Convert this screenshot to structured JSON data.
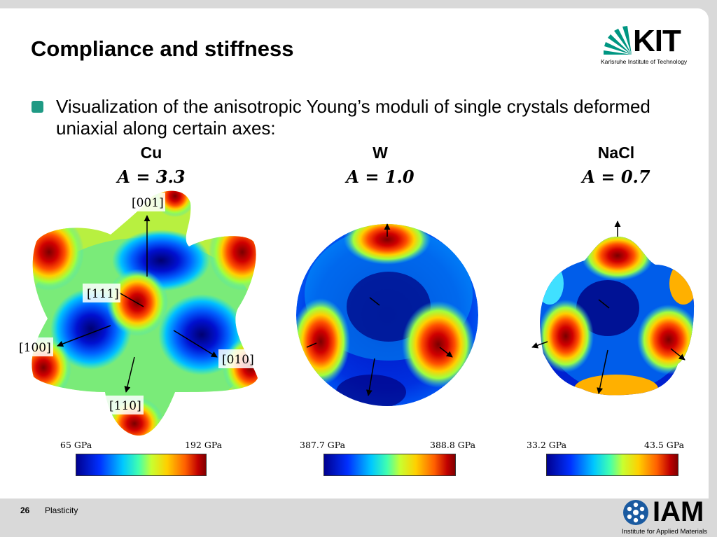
{
  "slide": {
    "title": "Compliance and stiffness",
    "bullet": "Visualization of the anisotropic Young’s moduli of single crystals deformed uniaxial along certain axes:",
    "accent_color": "#1f9a84"
  },
  "logos": {
    "kit_word": "KIT",
    "kit_sub": "Karlsruhe Institute of Technology",
    "iam_word": "IAM",
    "iam_sub": "Institute for Applied Materials"
  },
  "crystals": [
    {
      "name": "Cu",
      "anisotropy": "A = 3.3",
      "scale_min": "65 GPa",
      "scale_max": "192 GPa",
      "direction_labels": [
        "[001]",
        "[111]",
        "[100]",
        "[010]",
        "[110]"
      ]
    },
    {
      "name": "W",
      "anisotropy": "A = 1.0",
      "scale_min": "387.7 GPa",
      "scale_max": "388.8 GPa"
    },
    {
      "name": "NaCl",
      "anisotropy": "A = 0.7",
      "scale_min": "33.2 GPa",
      "scale_max": "43.5 GPa"
    }
  ],
  "colormap": [
    "#00008f",
    "#0030ff",
    "#00c8ff",
    "#40ffb0",
    "#c8ff30",
    "#ffd000",
    "#ff6000",
    "#c00000",
    "#800000"
  ],
  "footer": {
    "page_number": "26",
    "section": "Plasticity"
  }
}
